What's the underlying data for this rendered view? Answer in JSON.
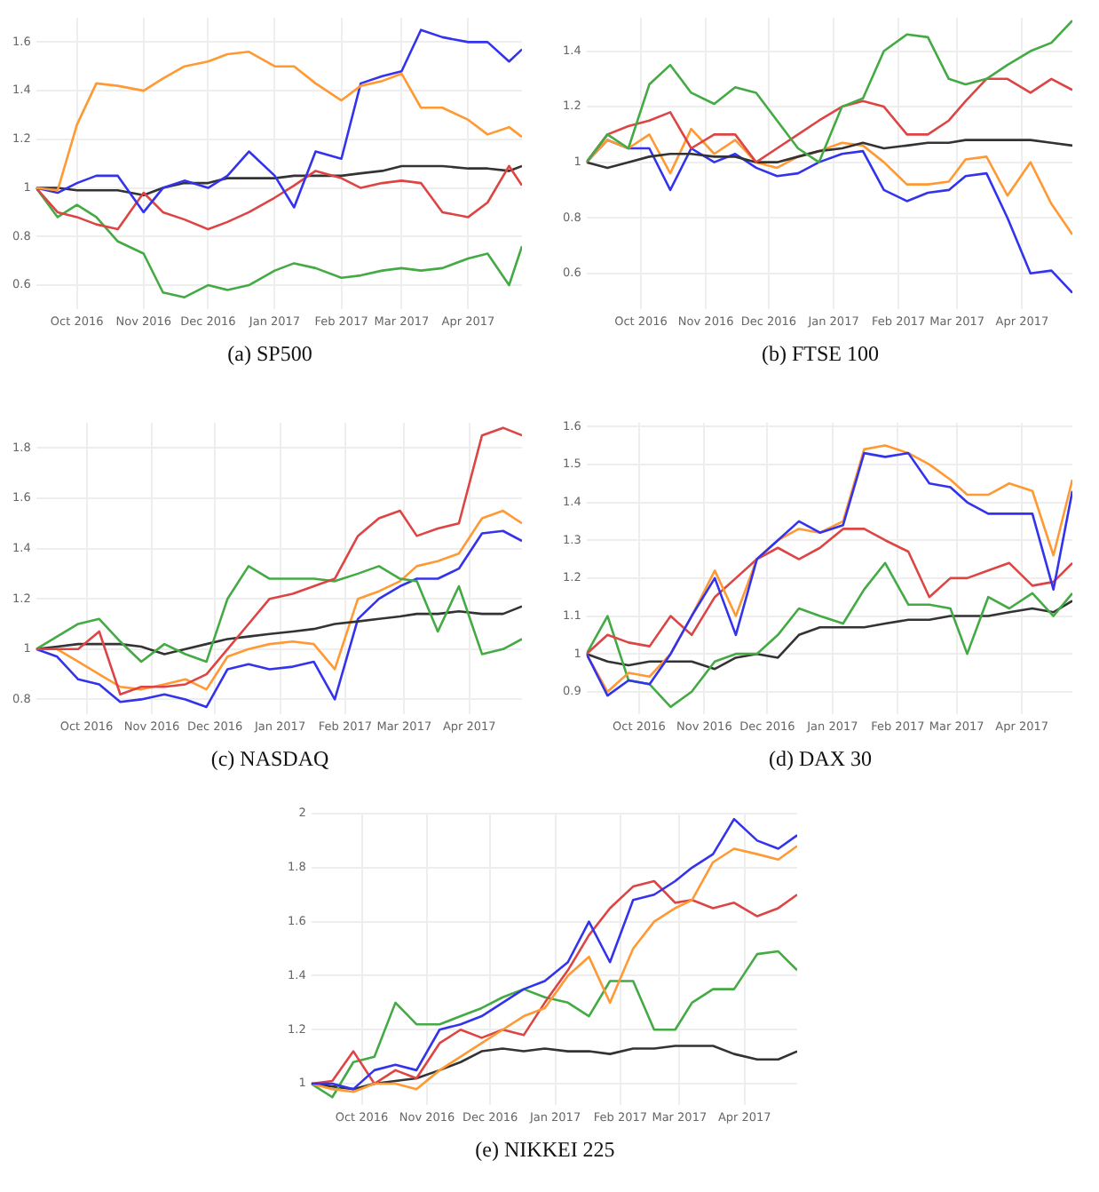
{
  "chart_data": [
    {
      "type": "line",
      "title": "(a) SP500",
      "grid": true,
      "legend": false,
      "x": [
        "2016-09-12",
        "2016-09-22",
        "2016-10-01",
        "2016-10-10",
        "2016-10-20",
        "2016-11-01",
        "2016-11-10",
        "2016-11-20",
        "2016-12-01",
        "2016-12-10",
        "2016-12-20",
        "2017-01-01",
        "2017-01-10",
        "2017-01-20",
        "2017-02-01",
        "2017-02-10",
        "2017-02-20",
        "2017-03-01",
        "2017-03-10",
        "2017-03-20",
        "2017-04-01",
        "2017-04-10",
        "2017-04-20",
        "2017-04-26"
      ],
      "xlim": [
        "2016-09-12",
        "2017-04-26"
      ],
      "xticks": [
        {
          "value": "2016-10-01",
          "label": "Oct 2016"
        },
        {
          "value": "2016-11-01",
          "label": "Nov 2016"
        },
        {
          "value": "2016-12-01",
          "label": "Dec 2016"
        },
        {
          "value": "2017-01-01",
          "label": "Jan 2017"
        },
        {
          "value": "2017-02-01",
          "label": "Feb 2017"
        },
        {
          "value": "2017-03-01",
          "label": "Mar 2017"
        },
        {
          "value": "2017-04-01",
          "label": "Apr 2017"
        }
      ],
      "ylim": [
        0.5,
        1.7
      ],
      "yticks": [
        0.6,
        0.8,
        1,
        1.2,
        1.4,
        1.6
      ],
      "series": [
        {
          "color": "#ff9933",
          "values": [
            1.0,
            0.99,
            1.26,
            1.43,
            1.42,
            1.4,
            1.45,
            1.5,
            1.52,
            1.55,
            1.56,
            1.5,
            1.5,
            1.43,
            1.36,
            1.42,
            1.44,
            1.47,
            1.33,
            1.33,
            1.28,
            1.22,
            1.25,
            1.21
          ]
        },
        {
          "color": "#3333ee",
          "values": [
            1.0,
            0.98,
            1.02,
            1.05,
            1.05,
            0.9,
            1.0,
            1.03,
            1.0,
            1.05,
            1.15,
            1.05,
            0.92,
            1.15,
            1.12,
            1.43,
            1.46,
            1.48,
            1.65,
            1.62,
            1.6,
            1.6,
            1.52,
            1.57
          ]
        },
        {
          "color": "#dd4444",
          "values": [
            1.0,
            0.9,
            0.88,
            0.85,
            0.83,
            0.98,
            0.9,
            0.87,
            0.83,
            0.86,
            0.9,
            0.96,
            1.01,
            1.07,
            1.04,
            1.0,
            1.02,
            1.03,
            1.02,
            0.9,
            0.88,
            0.94,
            1.09,
            1.01
          ]
        },
        {
          "color": "#44aa44",
          "values": [
            1.0,
            0.88,
            0.93,
            0.88,
            0.78,
            0.73,
            0.57,
            0.55,
            0.6,
            0.58,
            0.6,
            0.66,
            0.69,
            0.67,
            0.63,
            0.64,
            0.66,
            0.67,
            0.66,
            0.67,
            0.71,
            0.73,
            0.6,
            0.76
          ]
        },
        {
          "color": "#333333",
          "values": [
            1.0,
            1.0,
            0.99,
            0.99,
            0.99,
            0.97,
            1.0,
            1.02,
            1.02,
            1.04,
            1.04,
            1.04,
            1.05,
            1.05,
            1.05,
            1.06,
            1.07,
            1.09,
            1.09,
            1.09,
            1.08,
            1.08,
            1.07,
            1.09
          ]
        }
      ]
    },
    {
      "type": "line",
      "title": "(b) FTSE 100",
      "grid": true,
      "legend": false,
      "x": [
        "2016-09-05",
        "2016-09-15",
        "2016-09-25",
        "2016-10-05",
        "2016-10-15",
        "2016-10-25",
        "2016-11-05",
        "2016-11-15",
        "2016-11-25",
        "2016-12-05",
        "2016-12-15",
        "2016-12-25",
        "2017-01-05",
        "2017-01-15",
        "2017-01-25",
        "2017-02-05",
        "2017-02-15",
        "2017-02-25",
        "2017-03-05",
        "2017-03-15",
        "2017-03-25",
        "2017-04-05",
        "2017-04-15",
        "2017-04-25"
      ],
      "xlim": [
        "2016-09-05",
        "2017-04-25"
      ],
      "xticks": [
        {
          "value": "2016-10-01",
          "label": "Oct 2016"
        },
        {
          "value": "2016-11-01",
          "label": "Nov 2016"
        },
        {
          "value": "2016-12-01",
          "label": "Dec 2016"
        },
        {
          "value": "2017-01-01",
          "label": "Jan 2017"
        },
        {
          "value": "2017-02-01",
          "label": "Feb 2017"
        },
        {
          "value": "2017-03-01",
          "label": "Mar 2017"
        },
        {
          "value": "2017-04-01",
          "label": "Apr 2017"
        }
      ],
      "ylim": [
        0.47,
        1.52
      ],
      "yticks": [
        0.6,
        0.8,
        1,
        1.2,
        1.4
      ],
      "series": [
        {
          "color": "#44aa44",
          "values": [
            1.0,
            1.1,
            1.05,
            1.28,
            1.35,
            1.25,
            1.21,
            1.27,
            1.25,
            1.15,
            1.05,
            1.0,
            1.2,
            1.23,
            1.4,
            1.46,
            1.45,
            1.3,
            1.28,
            1.3,
            1.35,
            1.4,
            1.43,
            1.51
          ]
        },
        {
          "color": "#dd4444",
          "values": [
            1.0,
            1.1,
            1.13,
            1.15,
            1.18,
            1.05,
            1.1,
            1.1,
            1.0,
            1.05,
            1.1,
            1.15,
            1.2,
            1.22,
            1.2,
            1.1,
            1.1,
            1.15,
            1.22,
            1.3,
            1.3,
            1.25,
            1.3,
            1.26
          ]
        },
        {
          "color": "#333333",
          "values": [
            1.0,
            0.98,
            1.0,
            1.02,
            1.03,
            1.03,
            1.02,
            1.02,
            1.0,
            1.0,
            1.02,
            1.04,
            1.05,
            1.07,
            1.05,
            1.06,
            1.07,
            1.07,
            1.08,
            1.08,
            1.08,
            1.08,
            1.07,
            1.06
          ]
        },
        {
          "color": "#ff9933",
          "values": [
            1.0,
            1.08,
            1.05,
            1.1,
            0.96,
            1.12,
            1.03,
            1.08,
            1.0,
            0.98,
            1.02,
            1.04,
            1.07,
            1.06,
            1.0,
            0.92,
            0.92,
            0.93,
            1.01,
            1.02,
            0.88,
            1.0,
            0.85,
            0.74
          ]
        },
        {
          "color": "#3333ee",
          "values": [
            1.0,
            1.08,
            1.05,
            1.05,
            0.9,
            1.05,
            1.0,
            1.03,
            0.98,
            0.95,
            0.96,
            1.0,
            1.03,
            1.04,
            0.9,
            0.86,
            0.89,
            0.9,
            0.95,
            0.96,
            0.8,
            0.6,
            0.61,
            0.53
          ]
        }
      ]
    },
    {
      "type": "line",
      "title": "(c) NASDAQ",
      "grid": true,
      "legend": false,
      "x": [
        "2016-09-07",
        "2016-09-17",
        "2016-09-27",
        "2016-10-07",
        "2016-10-17",
        "2016-10-27",
        "2016-11-07",
        "2016-11-17",
        "2016-11-27",
        "2016-12-07",
        "2016-12-17",
        "2016-12-27",
        "2017-01-07",
        "2017-01-17",
        "2017-01-27",
        "2017-02-07",
        "2017-02-17",
        "2017-02-27",
        "2017-03-07",
        "2017-03-17",
        "2017-03-27",
        "2017-04-07",
        "2017-04-17",
        "2017-04-26"
      ],
      "xlim": [
        "2016-09-07",
        "2017-04-26"
      ],
      "xticks": [
        {
          "value": "2016-10-01",
          "label": "Oct 2016"
        },
        {
          "value": "2016-11-01",
          "label": "Nov 2016"
        },
        {
          "value": "2016-12-01",
          "label": "Dec 2016"
        },
        {
          "value": "2017-01-01",
          "label": "Jan 2017"
        },
        {
          "value": "2017-02-01",
          "label": "Feb 2017"
        },
        {
          "value": "2017-03-01",
          "label": "Mar 2017"
        },
        {
          "value": "2017-04-01",
          "label": "Apr 2017"
        }
      ],
      "ylim": [
        0.74,
        1.9
      ],
      "yticks": [
        0.8,
        1,
        1.2,
        1.4,
        1.6,
        1.8
      ],
      "series": [
        {
          "color": "#dd4444",
          "values": [
            1.0,
            1.0,
            1.0,
            1.07,
            0.82,
            0.85,
            0.85,
            0.86,
            0.9,
            1.0,
            1.1,
            1.2,
            1.22,
            1.25,
            1.28,
            1.45,
            1.52,
            1.55,
            1.45,
            1.48,
            1.5,
            1.85,
            1.88,
            1.85
          ]
        },
        {
          "color": "#44aa44",
          "values": [
            1.0,
            1.05,
            1.1,
            1.12,
            1.03,
            0.95,
            1.02,
            0.98,
            0.95,
            1.2,
            1.33,
            1.28,
            1.28,
            1.28,
            1.27,
            1.3,
            1.33,
            1.28,
            1.27,
            1.07,
            1.25,
            0.98,
            1.0,
            1.04
          ]
        },
        {
          "color": "#333333",
          "values": [
            1.0,
            1.01,
            1.02,
            1.02,
            1.02,
            1.01,
            0.98,
            1.0,
            1.02,
            1.04,
            1.05,
            1.06,
            1.07,
            1.08,
            1.1,
            1.11,
            1.12,
            1.13,
            1.14,
            1.14,
            1.15,
            1.14,
            1.14,
            1.17
          ]
        },
        {
          "color": "#ff9933",
          "values": [
            1.0,
            1.0,
            0.95,
            0.9,
            0.85,
            0.84,
            0.86,
            0.88,
            0.84,
            0.97,
            1.0,
            1.02,
            1.03,
            1.02,
            0.92,
            1.2,
            1.23,
            1.27,
            1.33,
            1.35,
            1.38,
            1.52,
            1.55,
            1.5
          ]
        },
        {
          "color": "#3333ee",
          "values": [
            1.0,
            0.97,
            0.88,
            0.86,
            0.79,
            0.8,
            0.82,
            0.8,
            0.77,
            0.92,
            0.94,
            0.92,
            0.93,
            0.95,
            0.8,
            1.12,
            1.2,
            1.25,
            1.28,
            1.28,
            1.32,
            1.46,
            1.47,
            1.43
          ]
        }
      ]
    },
    {
      "type": "line",
      "title": "(d) DAX 30",
      "grid": true,
      "legend": false,
      "x": [
        "2016-09-06",
        "2016-09-16",
        "2016-09-26",
        "2016-10-06",
        "2016-10-16",
        "2016-10-26",
        "2016-11-06",
        "2016-11-16",
        "2016-11-26",
        "2016-12-06",
        "2016-12-16",
        "2016-12-26",
        "2017-01-06",
        "2017-01-16",
        "2017-01-26",
        "2017-02-06",
        "2017-02-16",
        "2017-02-26",
        "2017-03-06",
        "2017-03-16",
        "2017-03-26",
        "2017-04-06",
        "2017-04-16",
        "2017-04-25"
      ],
      "xlim": [
        "2016-09-06",
        "2017-04-25"
      ],
      "xticks": [
        {
          "value": "2016-10-01",
          "label": "Oct 2016"
        },
        {
          "value": "2016-11-01",
          "label": "Nov 2016"
        },
        {
          "value": "2016-12-01",
          "label": "Dec 2016"
        },
        {
          "value": "2017-01-01",
          "label": "Jan 2017"
        },
        {
          "value": "2017-02-01",
          "label": "Feb 2017"
        },
        {
          "value": "2017-03-01",
          "label": "Mar 2017"
        },
        {
          "value": "2017-04-01",
          "label": "Apr 2017"
        }
      ],
      "ylim": [
        0.84,
        1.61
      ],
      "yticks": [
        0.9,
        1,
        1.1,
        1.2,
        1.3,
        1.4,
        1.5,
        1.6
      ],
      "series": [
        {
          "color": "#3333ee",
          "values": [
            1.0,
            0.89,
            0.93,
            0.92,
            1.0,
            1.1,
            1.2,
            1.05,
            1.25,
            1.3,
            1.35,
            1.32,
            1.34,
            1.53,
            1.52,
            1.53,
            1.45,
            1.44,
            1.4,
            1.37,
            1.37,
            1.37,
            1.17,
            1.43
          ]
        },
        {
          "color": "#ff9933",
          "values": [
            1.0,
            0.9,
            0.95,
            0.94,
            1.0,
            1.1,
            1.22,
            1.1,
            1.25,
            1.3,
            1.33,
            1.32,
            1.35,
            1.54,
            1.55,
            1.53,
            1.5,
            1.46,
            1.42,
            1.42,
            1.45,
            1.43,
            1.26,
            1.46
          ]
        },
        {
          "color": "#dd4444",
          "values": [
            1.0,
            1.05,
            1.03,
            1.02,
            1.1,
            1.05,
            1.15,
            1.2,
            1.25,
            1.28,
            1.25,
            1.28,
            1.33,
            1.33,
            1.3,
            1.27,
            1.15,
            1.2,
            1.2,
            1.22,
            1.24,
            1.18,
            1.19,
            1.24
          ]
        },
        {
          "color": "#44aa44",
          "values": [
            1.0,
            1.1,
            0.93,
            0.92,
            0.86,
            0.9,
            0.98,
            1.0,
            1.0,
            1.05,
            1.12,
            1.1,
            1.08,
            1.17,
            1.24,
            1.13,
            1.13,
            1.12,
            1.0,
            1.15,
            1.12,
            1.16,
            1.1,
            1.16
          ]
        },
        {
          "color": "#333333",
          "values": [
            1.0,
            0.98,
            0.97,
            0.98,
            0.98,
            0.98,
            0.96,
            0.99,
            1.0,
            0.99,
            1.05,
            1.07,
            1.07,
            1.07,
            1.08,
            1.09,
            1.09,
            1.1,
            1.1,
            1.1,
            1.11,
            1.12,
            1.11,
            1.14
          ]
        }
      ]
    },
    {
      "type": "line",
      "title": "(e) NIKKEI 225",
      "grid": true,
      "legend": false,
      "x": [
        "2016-09-07",
        "2016-09-17",
        "2016-09-27",
        "2016-10-07",
        "2016-10-17",
        "2016-10-27",
        "2016-11-07",
        "2016-11-17",
        "2016-11-27",
        "2016-12-07",
        "2016-12-17",
        "2016-12-27",
        "2017-01-07",
        "2017-01-17",
        "2017-01-27",
        "2017-02-07",
        "2017-02-17",
        "2017-02-27",
        "2017-03-07",
        "2017-03-17",
        "2017-03-27",
        "2017-04-07",
        "2017-04-17",
        "2017-04-26"
      ],
      "xlim": [
        "2016-09-07",
        "2017-04-26"
      ],
      "xticks": [
        {
          "value": "2016-10-01",
          "label": "Oct 2016"
        },
        {
          "value": "2016-11-01",
          "label": "Nov 2016"
        },
        {
          "value": "2016-12-01",
          "label": "Dec 2016"
        },
        {
          "value": "2017-01-01",
          "label": "Jan 2017"
        },
        {
          "value": "2017-02-01",
          "label": "Feb 2017"
        },
        {
          "value": "2017-03-01",
          "label": "Mar 2017"
        },
        {
          "value": "2017-04-01",
          "label": "Apr 2017"
        }
      ],
      "ylim": [
        0.92,
        2.0
      ],
      "yticks": [
        1,
        1.2,
        1.4,
        1.6,
        1.8,
        2
      ],
      "series": [
        {
          "color": "#3333ee",
          "values": [
            1.0,
            1.0,
            0.98,
            1.05,
            1.07,
            1.05,
            1.2,
            1.22,
            1.25,
            1.3,
            1.35,
            1.38,
            1.45,
            1.6,
            1.45,
            1.68,
            1.7,
            1.75,
            1.8,
            1.85,
            1.98,
            1.9,
            1.87,
            1.92
          ]
        },
        {
          "color": "#ff9933",
          "values": [
            1.0,
            0.98,
            0.97,
            1.0,
            1.0,
            0.98,
            1.05,
            1.1,
            1.15,
            1.2,
            1.25,
            1.28,
            1.4,
            1.47,
            1.3,
            1.5,
            1.6,
            1.65,
            1.68,
            1.82,
            1.87,
            1.85,
            1.83,
            1.88
          ]
        },
        {
          "color": "#dd4444",
          "values": [
            1.0,
            1.01,
            1.12,
            1.0,
            1.05,
            1.02,
            1.15,
            1.2,
            1.17,
            1.2,
            1.18,
            1.3,
            1.42,
            1.55,
            1.65,
            1.73,
            1.75,
            1.67,
            1.68,
            1.65,
            1.67,
            1.62,
            1.65,
            1.7
          ]
        },
        {
          "color": "#44aa44",
          "values": [
            1.0,
            0.95,
            1.08,
            1.1,
            1.3,
            1.22,
            1.22,
            1.25,
            1.28,
            1.32,
            1.35,
            1.32,
            1.3,
            1.25,
            1.38,
            1.38,
            1.2,
            1.2,
            1.3,
            1.35,
            1.35,
            1.48,
            1.49,
            1.42
          ]
        },
        {
          "color": "#333333",
          "values": [
            1.0,
            0.99,
            0.98,
            1.0,
            1.01,
            1.02,
            1.05,
            1.08,
            1.12,
            1.13,
            1.12,
            1.13,
            1.12,
            1.12,
            1.11,
            1.13,
            1.13,
            1.14,
            1.14,
            1.14,
            1.11,
            1.09,
            1.09,
            1.12
          ]
        }
      ]
    }
  ]
}
